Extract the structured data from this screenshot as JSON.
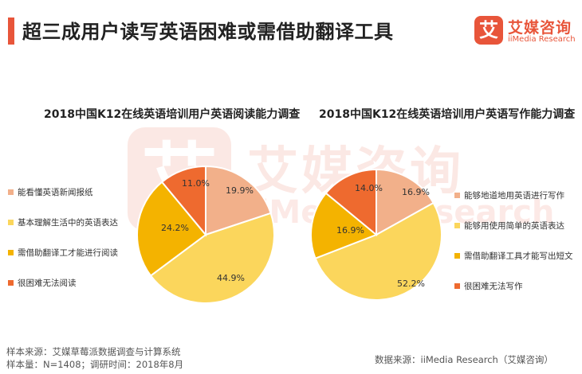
{
  "header": {
    "title": "超三成用户读写英语困难或需借助翻译工具",
    "logo_mark": "艾",
    "logo_name": "艾媒咨询",
    "logo_en": "iiMedia Research"
  },
  "watermark": {
    "mark": "艾",
    "name": "艾媒咨询",
    "en": "iiMedia Research"
  },
  "colors": {
    "peach": "#f2b08a",
    "yellow": "#fbd65c",
    "gold": "#f4b300",
    "red_orange": "#ee6a2f",
    "accent": "#e8553a"
  },
  "chart_data": [
    {
      "type": "pie",
      "title": "2018中国K12在线英语培训用户英语阅读能力调查",
      "start_angle_deg": 0,
      "direction": "clockwise",
      "legend_position": "left",
      "slices": [
        {
          "label": "能看懂英语新闻报纸",
          "value": 19.9,
          "display": "19.9%",
          "color": "#f2b08a"
        },
        {
          "label": "基本理解生活中的英语表达",
          "value": 44.9,
          "display": "44.9%",
          "color": "#fbd65c"
        },
        {
          "label": "需借助翻译工才能进行阅读",
          "value": 24.2,
          "display": "24.2%",
          "color": "#f4b300"
        },
        {
          "label": "很困难无法阅读",
          "value": 11.0,
          "display": "11.0%",
          "color": "#ee6a2f"
        }
      ]
    },
    {
      "type": "pie",
      "title": "2018中国K12在线英语培训用户英语写作能力调查",
      "start_angle_deg": 0,
      "direction": "clockwise",
      "legend_position": "right",
      "slices": [
        {
          "label": "能够地道地用英语进行写作",
          "value": 16.9,
          "display": "16.9%",
          "color": "#f2b08a"
        },
        {
          "label": "能够用使用简单的英语表达",
          "value": 52.2,
          "display": "52.2%",
          "color": "#fbd65c"
        },
        {
          "label": "需借助翻译工具才能写出短文",
          "value": 16.9,
          "display": "16.9%",
          "color": "#f4b300"
        },
        {
          "label": "很困难无法写作",
          "value": 14.0,
          "display": "14.0%",
          "color": "#ee6a2f"
        }
      ]
    }
  ],
  "footer": {
    "source_sample": "样本来源：艾媒草莓派数据调查与计算系统",
    "sample_size": "样本量：N=1408；调研时间：2018年8月",
    "data_source": "数据来源：iiMedia Research（艾媒咨询）"
  }
}
